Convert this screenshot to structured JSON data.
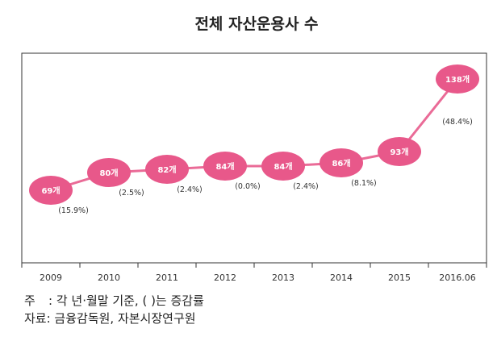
{
  "chart_data": {
    "type": "line",
    "title": "전체 자산운용사 수",
    "categories": [
      "2009",
      "2010",
      "2011",
      "2012",
      "2013",
      "2014",
      "2015",
      "2016.06"
    ],
    "values": [
      69,
      80,
      82,
      84,
      84,
      86,
      93,
      138
    ],
    "value_labels": [
      "69개",
      "80개",
      "82개",
      "84개",
      "84개",
      "86개",
      "93개",
      "138개"
    ],
    "growth_labels": [
      "(15.9%)",
      "(2.5%)",
      "(2.4%)",
      "(0.0%)",
      "(2.4%)",
      "(8.1%)",
      "(48.4%)"
    ],
    "xlabel": "",
    "ylabel": "",
    "ylim": [
      60,
      140
    ],
    "grid": false,
    "colors": {
      "line": "#ea6b97",
      "marker": "#e8588a",
      "frame": "#333333"
    }
  },
  "notes": {
    "note_label": "주",
    "note_text": ": 각 년·월말 기준, ( )는 증감률",
    "source_text": "자료: 금융감독원, 자본시장연구원"
  }
}
